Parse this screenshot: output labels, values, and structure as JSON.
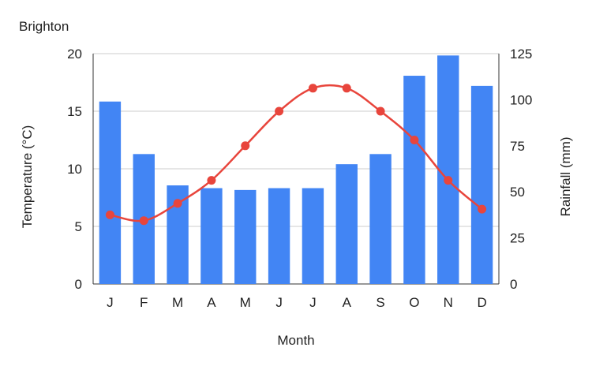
{
  "chart_data": {
    "type": "bar+line",
    "title": "Brighton",
    "xlabel": "Month",
    "categories": [
      "J",
      "F",
      "M",
      "A",
      "M",
      "J",
      "J",
      "A",
      "S",
      "O",
      "N",
      "D"
    ],
    "y_left": {
      "label": "Temperature (°C)",
      "range": [
        0,
        20
      ],
      "ticks": [
        "0",
        "5",
        "10",
        "15",
        "20"
      ]
    },
    "y_right": {
      "label": "Rainfall (mm)",
      "range": [
        0,
        125
      ],
      "ticks": [
        "0",
        "25",
        "50",
        "75",
        "100",
        "125"
      ]
    },
    "series": [
      {
        "type": "bar",
        "axis": "right",
        "color": "#4285f4",
        "values": [
          99,
          70.5,
          53.5,
          52,
          51,
          52,
          52,
          65,
          70.5,
          113,
          124,
          107.5
        ]
      },
      {
        "type": "line",
        "axis": "left",
        "color": "#e8453c",
        "smooth": true,
        "values": [
          6.0,
          5.5,
          7.0,
          9.0,
          12.0,
          15.0,
          17.0,
          17.0,
          15.0,
          12.5,
          9.0,
          6.5
        ]
      }
    ],
    "grid": true,
    "legend": "none"
  }
}
